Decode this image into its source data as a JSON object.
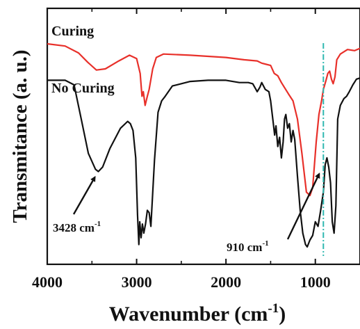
{
  "chart_data": {
    "type": "line",
    "xlabel_main": "Wavenumber (cm",
    "xlabel_sup": "-1",
    "xlabel_close": ")",
    "ylabel": "Transmitance (a. u.)",
    "xlim": [
      4000,
      500
    ],
    "ylim": [
      0,
      1
    ],
    "x_ticks": [
      4000,
      3000,
      2000,
      1000
    ],
    "x_tick_labels": [
      "4000",
      "3000",
      "2000",
      "1000"
    ],
    "reference_line": {
      "x": 910,
      "color": "#2eb8b0",
      "style": "dash-dot"
    },
    "series": [
      {
        "name": "Curing",
        "color": "#e8302a",
        "points": [
          [
            4000,
            0.93
          ],
          [
            3800,
            0.92
          ],
          [
            3650,
            0.89
          ],
          [
            3550,
            0.85
          ],
          [
            3450,
            0.815
          ],
          [
            3350,
            0.82
          ],
          [
            3200,
            0.855
          ],
          [
            3080,
            0.88
          ],
          [
            3000,
            0.865
          ],
          [
            2960,
            0.8
          ],
          [
            2940,
            0.7
          ],
          [
            2925,
            0.72
          ],
          [
            2905,
            0.66
          ],
          [
            2880,
            0.7
          ],
          [
            2860,
            0.73
          ],
          [
            2820,
            0.82
          ],
          [
            2780,
            0.87
          ],
          [
            2700,
            0.885
          ],
          [
            2400,
            0.88
          ],
          [
            2000,
            0.87
          ],
          [
            1800,
            0.86
          ],
          [
            1650,
            0.855
          ],
          [
            1600,
            0.845
          ],
          [
            1500,
            0.835
          ],
          [
            1460,
            0.8
          ],
          [
            1420,
            0.79
          ],
          [
            1380,
            0.76
          ],
          [
            1300,
            0.71
          ],
          [
            1250,
            0.68
          ],
          [
            1200,
            0.6
          ],
          [
            1150,
            0.45
          ],
          [
            1100,
            0.28
          ],
          [
            1060,
            0.265
          ],
          [
            1030,
            0.3
          ],
          [
            990,
            0.5
          ],
          [
            960,
            0.62
          ],
          [
            930,
            0.68
          ],
          [
            910,
            0.73
          ],
          [
            880,
            0.77
          ],
          [
            860,
            0.8
          ],
          [
            840,
            0.81
          ],
          [
            820,
            0.775
          ],
          [
            800,
            0.755
          ],
          [
            780,
            0.785
          ],
          [
            760,
            0.86
          ],
          [
            720,
            0.885
          ],
          [
            640,
            0.905
          ],
          [
            560,
            0.9
          ],
          [
            500,
            0.91
          ]
        ]
      },
      {
        "name": "No Curing",
        "color": "#111111",
        "points": [
          [
            4000,
            0.77
          ],
          [
            3800,
            0.77
          ],
          [
            3700,
            0.75
          ],
          [
            3620,
            0.6
          ],
          [
            3540,
            0.45
          ],
          [
            3460,
            0.38
          ],
          [
            3428,
            0.37
          ],
          [
            3380,
            0.39
          ],
          [
            3300,
            0.47
          ],
          [
            3180,
            0.56
          ],
          [
            3100,
            0.59
          ],
          [
            3070,
            0.58
          ],
          [
            3040,
            0.55
          ],
          [
            3010,
            0.43
          ],
          [
            2990,
            0.18
          ],
          [
            2975,
            0.05
          ],
          [
            2965,
            0.15
          ],
          [
            2950,
            0.08
          ],
          [
            2935,
            0.14
          ],
          [
            2920,
            0.1
          ],
          [
            2900,
            0.14
          ],
          [
            2880,
            0.2
          ],
          [
            2860,
            0.19
          ],
          [
            2840,
            0.13
          ],
          [
            2800,
            0.42
          ],
          [
            2760,
            0.63
          ],
          [
            2720,
            0.68
          ],
          [
            2680,
            0.7
          ],
          [
            2600,
            0.745
          ],
          [
            2400,
            0.765
          ],
          [
            2200,
            0.77
          ],
          [
            2000,
            0.77
          ],
          [
            1850,
            0.76
          ],
          [
            1750,
            0.76
          ],
          [
            1700,
            0.755
          ],
          [
            1650,
            0.72
          ],
          [
            1620,
            0.74
          ],
          [
            1600,
            0.76
          ],
          [
            1560,
            0.73
          ],
          [
            1520,
            0.72
          ],
          [
            1500,
            0.68
          ],
          [
            1470,
            0.58
          ],
          [
            1455,
            0.53
          ],
          [
            1440,
            0.57
          ],
          [
            1420,
            0.48
          ],
          [
            1400,
            0.52
          ],
          [
            1380,
            0.43
          ],
          [
            1360,
            0.5
          ],
          [
            1345,
            0.6
          ],
          [
            1330,
            0.62
          ],
          [
            1310,
            0.56
          ],
          [
            1290,
            0.58
          ],
          [
            1270,
            0.5
          ],
          [
            1250,
            0.55
          ],
          [
            1230,
            0.51
          ],
          [
            1200,
            0.35
          ],
          [
            1170,
            0.2
          ],
          [
            1140,
            0.1
          ],
          [
            1110,
            0.05
          ],
          [
            1090,
            0.04
          ],
          [
            1060,
            0.07
          ],
          [
            1030,
            0.09
          ],
          [
            1000,
            0.15
          ],
          [
            970,
            0.13
          ],
          [
            940,
            0.2
          ],
          [
            910,
            0.28
          ],
          [
            890,
            0.4
          ],
          [
            870,
            0.43
          ],
          [
            850,
            0.39
          ],
          [
            830,
            0.32
          ],
          [
            810,
            0.15
          ],
          [
            790,
            0.1
          ],
          [
            770,
            0.22
          ],
          [
            750,
            0.6
          ],
          [
            720,
            0.66
          ],
          [
            680,
            0.69
          ],
          [
            650,
            0.7
          ],
          [
            620,
            0.72
          ],
          [
            580,
            0.75
          ],
          [
            540,
            0.775
          ],
          [
            500,
            0.78
          ]
        ]
      }
    ],
    "annotations": [
      {
        "label_main": "3428 cm",
        "label_sup": "-1",
        "x": 3428,
        "y": 0.37
      },
      {
        "label_main": "910 cm",
        "label_sup": "-1",
        "x": 910,
        "y": 0.06
      }
    ]
  }
}
